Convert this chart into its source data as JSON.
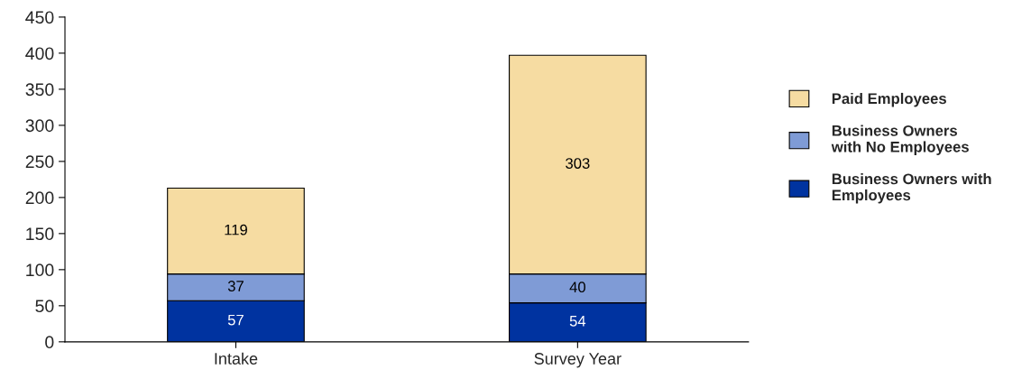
{
  "chart_data": {
    "type": "bar",
    "stacked": true,
    "categories": [
      "Intake",
      "Survey Year"
    ],
    "series": [
      {
        "name": "Business Owners with\nEmployees",
        "color": "#0033a0",
        "values": [
          57,
          54
        ]
      },
      {
        "name": "Business Owners\nwith No Employees",
        "color": "#7f9bd6",
        "values": [
          37,
          40
        ]
      },
      {
        "name": "Paid Employees",
        "color": "#f6dca2",
        "values": [
          119,
          303
        ]
      }
    ],
    "ylim": [
      0,
      450
    ],
    "yticks": [
      0,
      50,
      100,
      150,
      200,
      250,
      300,
      350,
      400,
      450
    ],
    "data_labels": true,
    "grid": false,
    "legend": "right"
  }
}
